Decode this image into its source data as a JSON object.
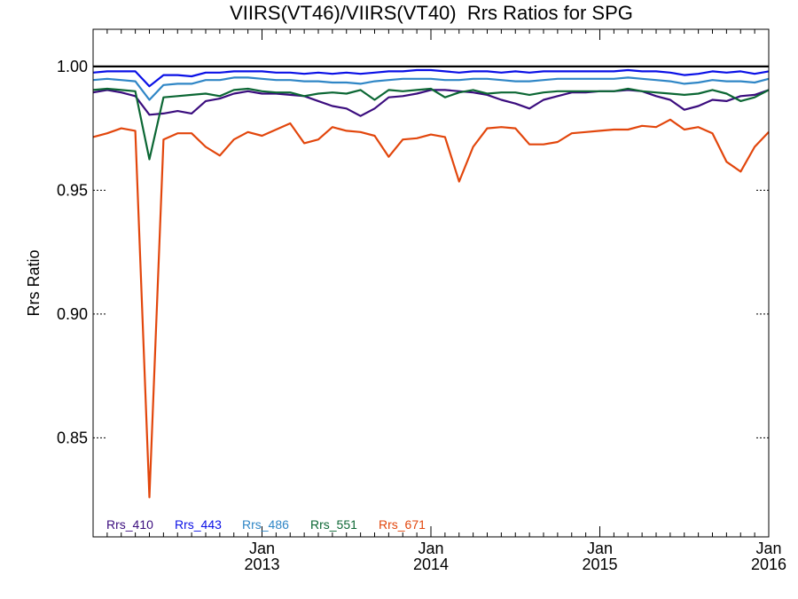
{
  "chart_data": {
    "type": "line",
    "title": "VIIRS(VT46)/VIIRS(VT40)  Rrs Ratios for SPG",
    "xlabel": "",
    "ylabel": "Rrs Ratio",
    "ylim": [
      0.81,
      1.015
    ],
    "xlim": [
      "2012-01",
      "2016-01"
    ],
    "x_ticks": [
      {
        "month": "Jan",
        "year": "2013",
        "date": "2013-01"
      },
      {
        "month": "Jan",
        "year": "2014",
        "date": "2014-01"
      },
      {
        "month": "Jan",
        "year": "2015",
        "date": "2015-01"
      },
      {
        "month": "Jan",
        "year": "2016",
        "date": "2016-01"
      }
    ],
    "y_ticks": [
      "0.85",
      "0.90",
      "0.95",
      "1.00"
    ],
    "reference_line": 1.0,
    "grid": false,
    "legend_position": "bottom-left",
    "x": [
      "2012-01",
      "2012-02",
      "2012-03",
      "2012-04",
      "2012-05",
      "2012-06",
      "2012-07",
      "2012-08",
      "2012-09",
      "2012-10",
      "2012-11",
      "2012-12",
      "2013-01",
      "2013-02",
      "2013-03",
      "2013-04",
      "2013-05",
      "2013-06",
      "2013-07",
      "2013-08",
      "2013-09",
      "2013-10",
      "2013-11",
      "2013-12",
      "2014-01",
      "2014-02",
      "2014-03",
      "2014-04",
      "2014-05",
      "2014-06",
      "2014-07",
      "2014-08",
      "2014-09",
      "2014-10",
      "2014-11",
      "2014-12",
      "2015-01",
      "2015-02",
      "2015-03",
      "2015-04",
      "2015-05",
      "2015-06",
      "2015-07",
      "2015-08",
      "2015-09",
      "2015-10",
      "2015-11",
      "2015-12",
      "2016-01"
    ],
    "series": [
      {
        "name": "Rrs_410",
        "color": "#3b0d7e",
        "values": [
          0.9895,
          0.9905,
          0.9895,
          0.988,
          0.9805,
          0.981,
          0.982,
          0.981,
          0.986,
          0.987,
          0.989,
          0.99,
          0.989,
          0.989,
          0.9885,
          0.988,
          0.986,
          0.984,
          0.983,
          0.98,
          0.983,
          0.9875,
          0.988,
          0.989,
          0.9905,
          0.9905,
          0.99,
          0.9895,
          0.9885,
          0.9865,
          0.985,
          0.983,
          0.9865,
          0.988,
          0.9895,
          0.9895,
          0.99,
          0.99,
          0.9905,
          0.99,
          0.988,
          0.9865,
          0.9825,
          0.984,
          0.9865,
          0.986,
          0.988,
          0.9885,
          0.9905
        ]
      },
      {
        "name": "Rrs_443",
        "color": "#0a10e6",
        "values": [
          0.9975,
          0.998,
          0.998,
          0.998,
          0.992,
          0.9965,
          0.9965,
          0.996,
          0.9975,
          0.9975,
          0.998,
          0.998,
          0.998,
          0.9975,
          0.9975,
          0.997,
          0.9975,
          0.997,
          0.9975,
          0.997,
          0.9975,
          0.998,
          0.998,
          0.9985,
          0.9985,
          0.998,
          0.9975,
          0.998,
          0.998,
          0.9975,
          0.998,
          0.9975,
          0.998,
          0.998,
          0.998,
          0.998,
          0.998,
          0.998,
          0.9985,
          0.998,
          0.998,
          0.9975,
          0.9965,
          0.997,
          0.998,
          0.9975,
          0.998,
          0.997,
          0.998
        ]
      },
      {
        "name": "Rrs_486",
        "color": "#2f86c6",
        "values": [
          0.9945,
          0.995,
          0.9945,
          0.994,
          0.9865,
          0.9925,
          0.993,
          0.993,
          0.9945,
          0.9945,
          0.9955,
          0.9955,
          0.995,
          0.9945,
          0.9945,
          0.994,
          0.994,
          0.9935,
          0.9935,
          0.993,
          0.994,
          0.9945,
          0.995,
          0.995,
          0.995,
          0.9945,
          0.9945,
          0.995,
          0.995,
          0.9945,
          0.994,
          0.994,
          0.9945,
          0.995,
          0.995,
          0.995,
          0.995,
          0.995,
          0.9955,
          0.995,
          0.9945,
          0.994,
          0.993,
          0.9935,
          0.9945,
          0.994,
          0.994,
          0.9935,
          0.995
        ]
      },
      {
        "name": "Rrs_551",
        "color": "#0c6734",
        "values": [
          0.9905,
          0.991,
          0.9905,
          0.99,
          0.9625,
          0.9875,
          0.988,
          0.9885,
          0.989,
          0.988,
          0.9905,
          0.991,
          0.99,
          0.9895,
          0.9895,
          0.988,
          0.989,
          0.9895,
          0.989,
          0.9905,
          0.9865,
          0.9905,
          0.99,
          0.9905,
          0.991,
          0.9875,
          0.9895,
          0.9905,
          0.989,
          0.9895,
          0.9895,
          0.9885,
          0.9895,
          0.99,
          0.99,
          0.99,
          0.99,
          0.99,
          0.991,
          0.99,
          0.9895,
          0.989,
          0.9885,
          0.989,
          0.9905,
          0.989,
          0.986,
          0.9875,
          0.9905
        ]
      },
      {
        "name": "Rrs_671",
        "color": "#e2460c",
        "values": [
          0.9715,
          0.973,
          0.975,
          0.974,
          0.826,
          0.9705,
          0.973,
          0.973,
          0.9675,
          0.964,
          0.9705,
          0.9735,
          0.972,
          0.9745,
          0.977,
          0.969,
          0.9705,
          0.9755,
          0.974,
          0.9735,
          0.972,
          0.9635,
          0.9705,
          0.971,
          0.9725,
          0.9715,
          0.9535,
          0.9675,
          0.975,
          0.9755,
          0.975,
          0.9685,
          0.9685,
          0.9695,
          0.973,
          0.9735,
          0.974,
          0.9745,
          0.9745,
          0.976,
          0.9755,
          0.9785,
          0.9745,
          0.9755,
          0.973,
          0.9615,
          0.9575,
          0.9675,
          0.9735
        ]
      }
    ]
  }
}
